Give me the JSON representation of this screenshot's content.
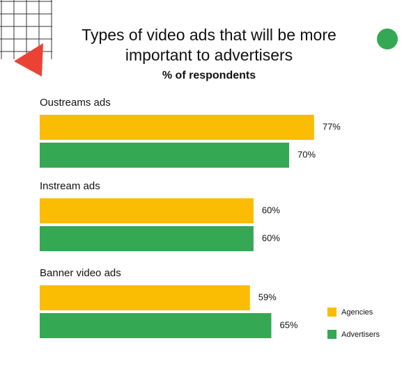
{
  "chart_data": {
    "type": "bar",
    "orientation": "horizontal",
    "title": "Types of video ads that will be more important to advertisers",
    "subtitle": "% of respondents",
    "categories": [
      "Oustreams ads",
      "Instream ads",
      "Banner video ads"
    ],
    "series": [
      {
        "name": "Agencies",
        "color": "#fbbc04",
        "values": [
          77,
          60,
          59
        ],
        "value_labels": [
          "77%",
          "60%",
          "59%"
        ]
      },
      {
        "name": "Advertisers",
        "color": "#34a853",
        "values": [
          70,
          60,
          65
        ],
        "value_labels": [
          "70%",
          "60%",
          "65%"
        ]
      }
    ],
    "legend": "bottom-right"
  }
}
